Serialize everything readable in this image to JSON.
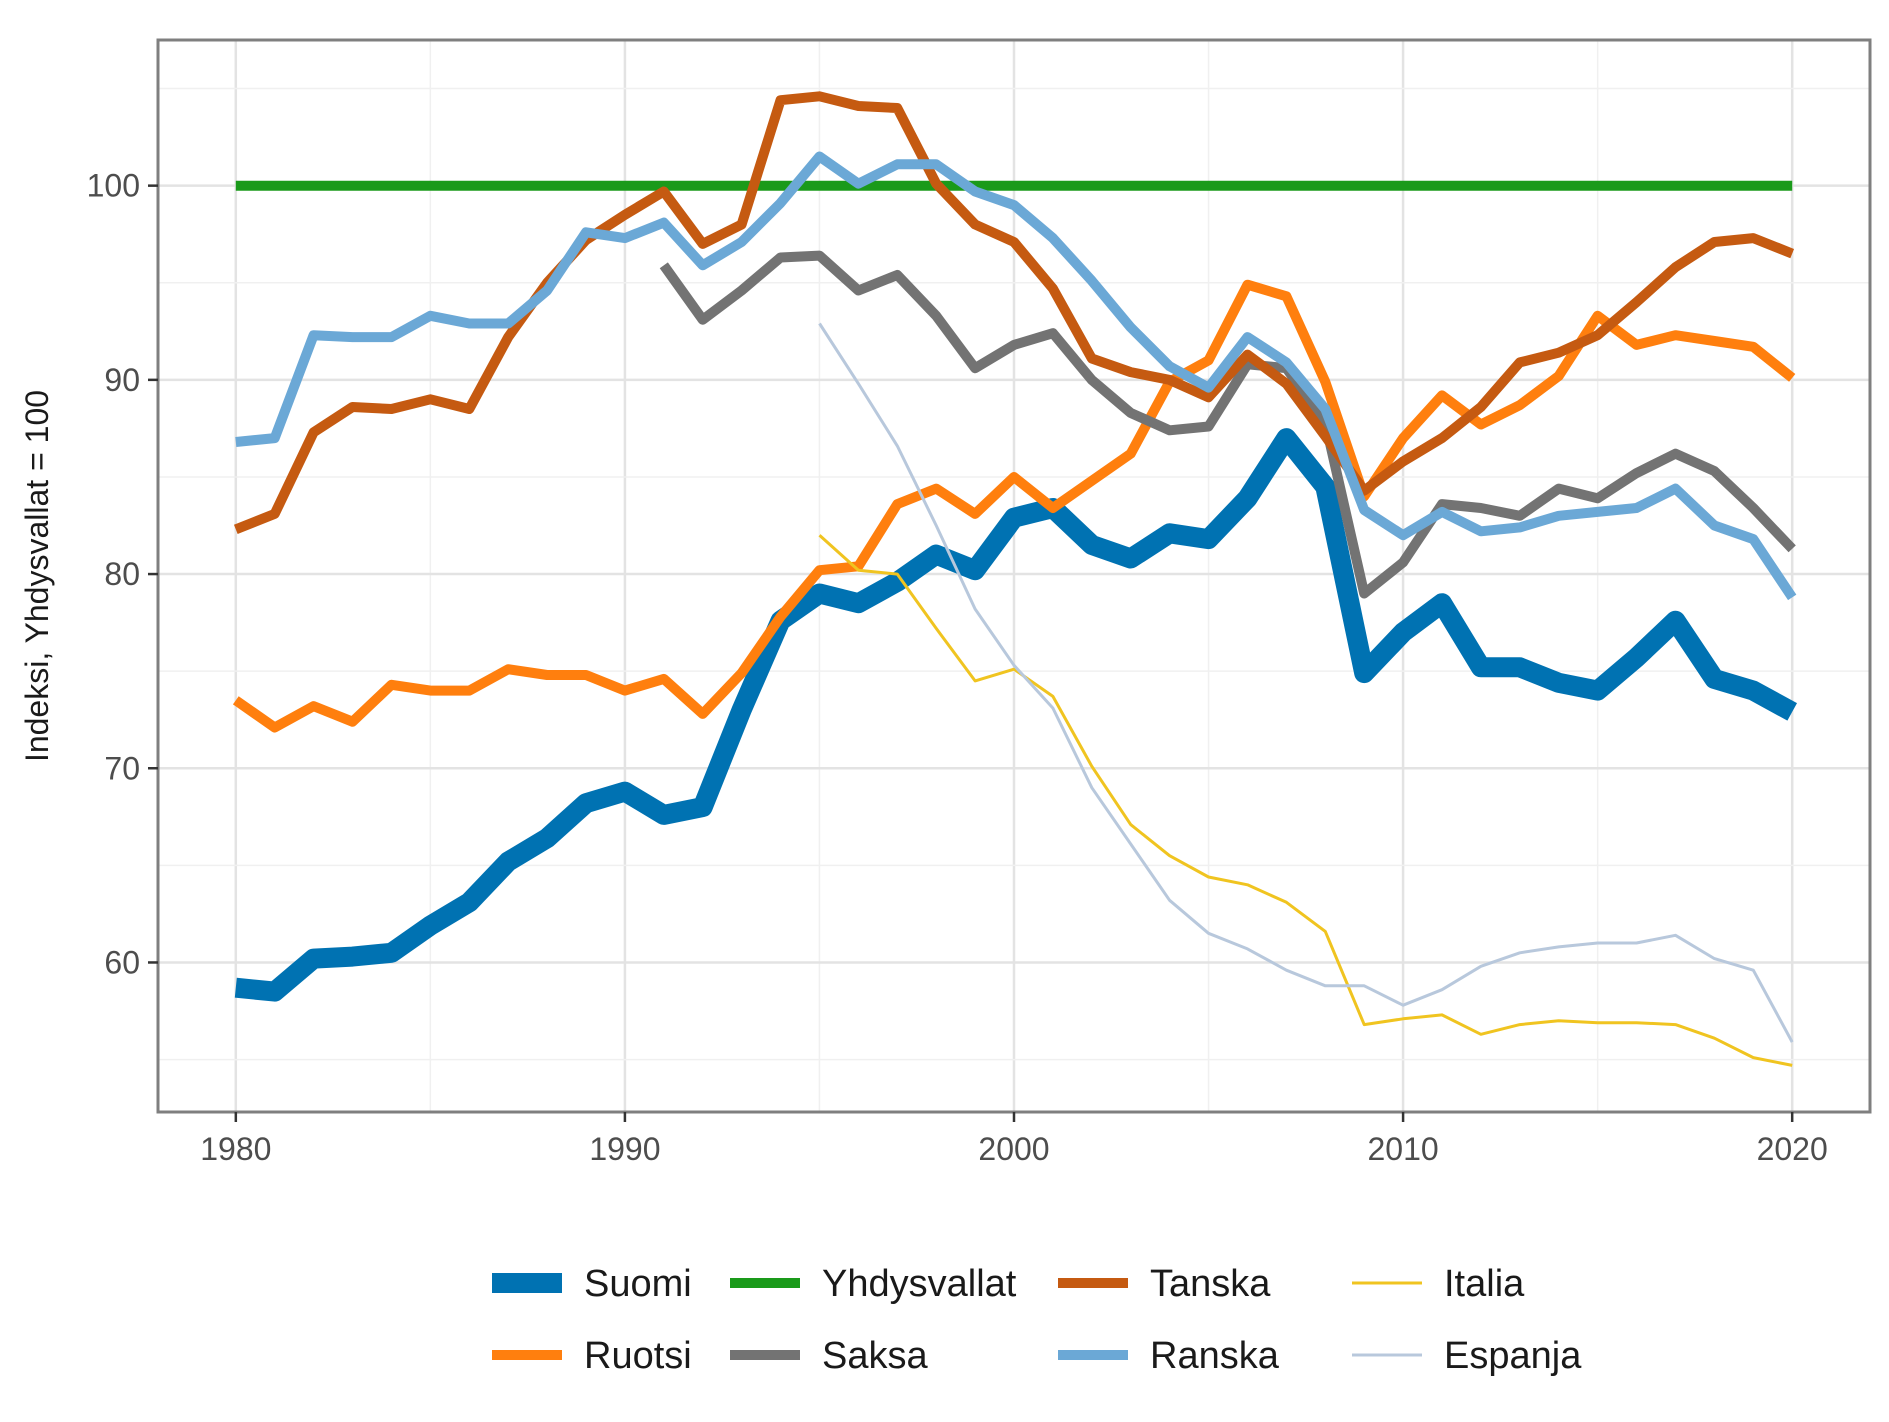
{
  "chart_data": {
    "type": "line",
    "title": "",
    "xlabel": "",
    "ylabel": "Indeksi, Yhdysvallat = 100",
    "xlim": [
      1978,
      2022
    ],
    "ylim": [
      52.3,
      107.5
    ],
    "x_ticks": [
      1980,
      1990,
      2000,
      2010,
      2020
    ],
    "x_tick_labels": [
      "1980",
      "1990",
      "2000",
      "2010",
      "2020"
    ],
    "y_ticks": [
      60,
      70,
      80,
      90,
      100
    ],
    "y_tick_labels": [
      "60",
      "70",
      "80",
      "90",
      "100"
    ],
    "grid": true,
    "legend_position": "bottom",
    "series": [
      {
        "name": "Suomi",
        "color": "#0072B2",
        "width": "thick",
        "start": 1980,
        "values": [
          58.7,
          58.5,
          60.2,
          60.3,
          60.5,
          61.9,
          63.1,
          65.2,
          66.4,
          68.2,
          68.8,
          67.6,
          68.0,
          73.0,
          77.6,
          79.0,
          78.5,
          79.6,
          81.0,
          80.2,
          82.9,
          83.4,
          81.5,
          80.8,
          82.1,
          81.8,
          83.9,
          87.0,
          84.5,
          74.9,
          77.0,
          78.5,
          75.2,
          75.2,
          74.4,
          74.0,
          75.7,
          77.6,
          74.6,
          74.0,
          72.9
        ]
      },
      {
        "name": "Ruotsi",
        "color": "#FF7F0E",
        "width": "medium",
        "start": 1980,
        "values": [
          73.5,
          72.1,
          73.2,
          72.4,
          74.3,
          74.0,
          74.0,
          75.1,
          74.8,
          74.8,
          74.0,
          74.6,
          72.8,
          74.9,
          77.8,
          80.2,
          80.4,
          83.6,
          84.4,
          83.1,
          85.0,
          83.4,
          84.8,
          86.2,
          89.9,
          91.0,
          94.9,
          94.3,
          89.9,
          84.0,
          87.0,
          89.2,
          87.7,
          88.7,
          90.2,
          93.3,
          91.8,
          92.3,
          92.0,
          91.7,
          90.1
        ]
      },
      {
        "name": "Yhdysvallat",
        "color": "#1A9A1A",
        "width": "medium",
        "start": 1980,
        "values": [
          100,
          100,
          100,
          100,
          100,
          100,
          100,
          100,
          100,
          100,
          100,
          100,
          100,
          100,
          100,
          100,
          100,
          100,
          100,
          100,
          100,
          100,
          100,
          100,
          100,
          100,
          100,
          100,
          100,
          100,
          100,
          100,
          100,
          100,
          100,
          100,
          100,
          100,
          100,
          100,
          100
        ]
      },
      {
        "name": "Saksa",
        "color": "#737373",
        "width": "medium",
        "start": 1991,
        "values": [
          95.9,
          93.1,
          94.6,
          96.3,
          96.4,
          94.6,
          95.4,
          93.3,
          90.6,
          91.8,
          92.4,
          90.0,
          88.3,
          87.4,
          87.6,
          90.8,
          90.6,
          87.8,
          79.0,
          80.6,
          83.6,
          83.4,
          83.0,
          84.4,
          83.9,
          85.2,
          86.2,
          85.3,
          83.4,
          81.3
        ]
      },
      {
        "name": "Tanska",
        "color": "#C55A11",
        "width": "medium",
        "start": 1980,
        "values": [
          82.3,
          83.1,
          87.3,
          88.6,
          88.5,
          89.0,
          88.5,
          92.2,
          95.0,
          97.2,
          98.5,
          99.7,
          97.0,
          98.0,
          104.4,
          104.6,
          104.1,
          104.0,
          100.1,
          98.0,
          97.1,
          94.7,
          91.1,
          90.4,
          90.0,
          89.1,
          91.3,
          89.8,
          87.1,
          84.3,
          85.8,
          87.0,
          88.6,
          90.9,
          91.4,
          92.3,
          94.0,
          95.8,
          97.1,
          97.3,
          96.5
        ]
      },
      {
        "name": "Ranska",
        "color": "#6BA8D6",
        "width": "medium",
        "start": 1980,
        "values": [
          86.8,
          87.0,
          92.3,
          92.2,
          92.2,
          93.3,
          92.9,
          92.9,
          94.6,
          97.6,
          97.3,
          98.1,
          95.9,
          97.1,
          99.1,
          101.5,
          100.1,
          101.1,
          101.1,
          99.7,
          99.0,
          97.3,
          95.1,
          92.7,
          90.7,
          89.6,
          92.2,
          90.9,
          88.5,
          83.3,
          82.0,
          83.2,
          82.2,
          82.4,
          83.0,
          83.2,
          83.4,
          84.4,
          82.5,
          81.8,
          78.8
        ]
      },
      {
        "name": "Italia",
        "color": "#F0C420",
        "width": "thin",
        "start": 1995,
        "values": [
          82.0,
          80.2,
          80.0,
          77.2,
          74.5,
          75.1,
          73.7,
          70.1,
          67.1,
          65.5,
          64.4,
          64.0,
          63.1,
          61.6,
          56.8,
          57.1,
          57.3,
          56.3,
          56.8,
          57.0,
          56.9,
          56.9,
          56.8,
          56.1,
          55.1,
          54.7
        ]
      },
      {
        "name": "Espanja",
        "color": "#B8C8DC",
        "width": "thin",
        "start": 1995,
        "values": [
          92.9,
          89.8,
          86.6,
          82.5,
          78.2,
          75.3,
          73.1,
          69.0,
          66.1,
          63.2,
          61.5,
          60.7,
          59.6,
          58.8,
          58.8,
          57.8,
          58.6,
          59.8,
          60.5,
          60.8,
          61.0,
          61.0,
          61.4,
          60.2,
          59.6,
          55.9
        ]
      }
    ],
    "legend_rows": [
      [
        "Suomi",
        "Yhdysvallat",
        "Tanska",
        "Italia"
      ],
      [
        "Ruotsi",
        "Saksa",
        "Ranska",
        "Espanja"
      ]
    ]
  }
}
